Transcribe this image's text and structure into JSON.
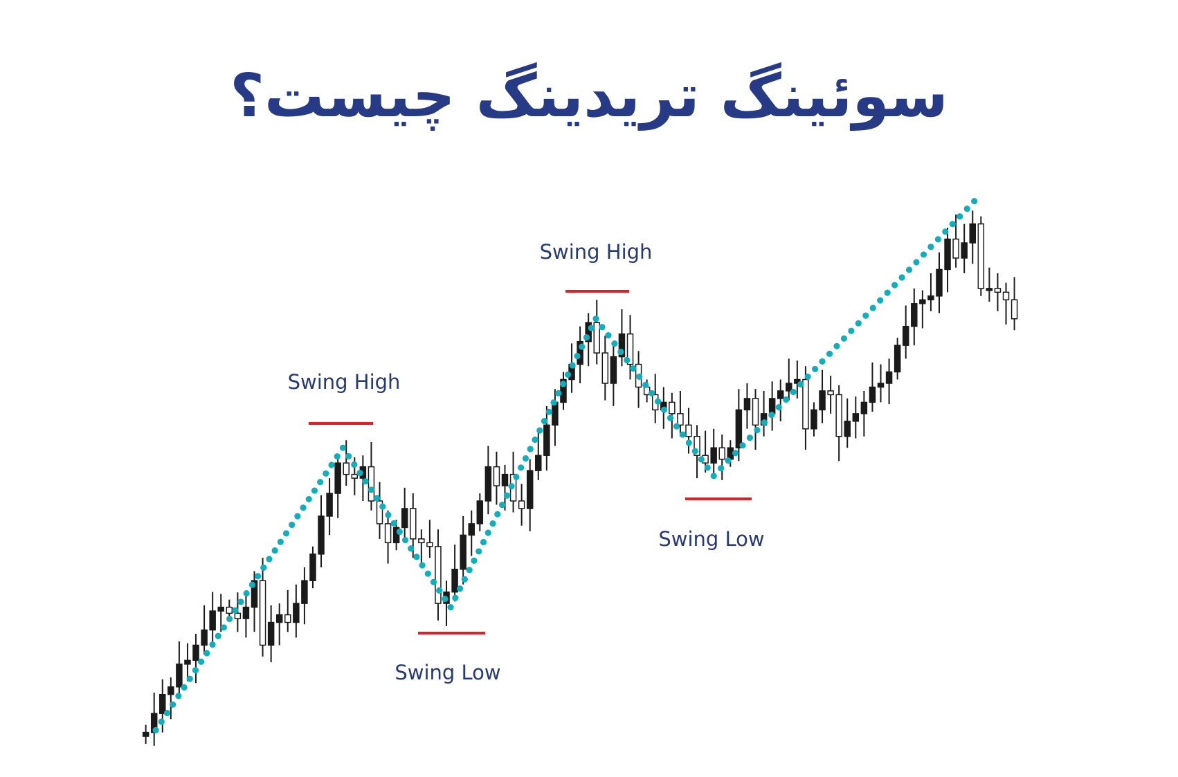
{
  "title": "سوئینگ تریدینگ چیست؟",
  "colors": {
    "title": "#263a86",
    "label": "#263a78",
    "dots": "#13aebc",
    "level_line": "#e02028",
    "bull_candle": "#1a1a1a",
    "bear_candle": "#ffffff"
  },
  "labels": {
    "swing_high_1": "Swing High",
    "swing_low_1": "Swing Low",
    "swing_high_2": "Swing High",
    "swing_low_2": "Swing Low"
  },
  "chart_data": {
    "type": "candlestick",
    "title": "",
    "axes_visible": false,
    "grid": false,
    "first_open": 3.0,
    "closes": [
      3.5,
      6.0,
      8.5,
      9.5,
      12.5,
      13.0,
      15.0,
      17.0,
      19.5,
      20.0,
      19.2,
      18.5,
      20.0,
      23.5,
      15.0,
      18.0,
      19.0,
      18.0,
      20.5,
      23.5,
      27.0,
      32.0,
      35.0,
      39.0,
      37.5,
      37.0,
      38.5,
      34.0,
      31.0,
      28.5,
      30.5,
      33.0,
      29.0,
      28.5,
      28.0,
      20.5,
      22.0,
      25.0,
      29.5,
      31.0,
      34.0,
      38.5,
      36.0,
      37.5,
      34.0,
      33.0,
      38.0,
      40.0,
      44.0,
      47.0,
      50.0,
      52.0,
      55.0,
      57.5,
      53.5,
      49.5,
      53.0,
      56.0,
      52.0,
      49.0,
      48.0,
      46.0,
      47.0,
      45.5,
      44.0,
      42.5,
      40.0,
      39.0,
      41.0,
      39.5,
      41.0,
      46.0,
      47.5,
      44.0,
      45.5,
      47.5,
      48.5,
      49.5,
      50.0,
      43.5,
      46.0,
      48.5,
      48.0,
      42.5,
      44.5,
      45.5,
      47.0,
      49.0,
      49.5,
      51.0,
      54.5,
      57.0,
      60.0,
      60.5,
      61.0,
      64.5,
      68.5,
      66.0,
      68.0,
      70.5,
      62.0,
      62.0,
      61.5,
      60.5,
      58.0
    ],
    "swing_path": [
      {
        "index": 1.2,
        "price": 3.8,
        "type": "start"
      },
      {
        "index": 23.6,
        "price": 41.0,
        "type": "Swing High"
      },
      {
        "index": 36.5,
        "price": 20.0,
        "type": "Swing Low"
      },
      {
        "index": 53.9,
        "price": 58.0,
        "type": "Swing High"
      },
      {
        "index": 68.0,
        "price": 37.3,
        "type": "Swing Low"
      },
      {
        "index": 99.2,
        "price": 73.5,
        "type": "end"
      }
    ]
  }
}
